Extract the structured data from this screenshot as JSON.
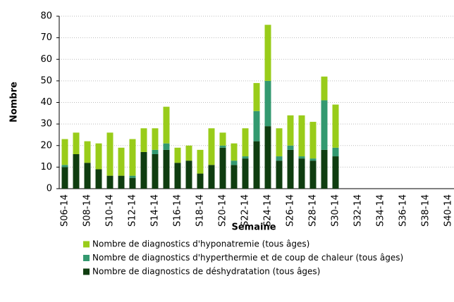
{
  "chart_data": {
    "type": "stacked_bar",
    "y_label": "Nombre",
    "x_label": "Semaine",
    "categories": [
      "S06-14",
      null,
      "S08-14",
      null,
      "S10-14",
      null,
      "S12-14",
      null,
      "S14-14",
      null,
      "S16-14",
      null,
      "S18-14",
      null,
      "S20-14",
      null,
      "S22-14",
      null,
      "S24-14",
      null,
      "S26-14",
      null,
      "S28-14",
      null,
      "S30-14",
      null,
      "S32-14",
      null,
      "S34-14",
      null,
      "S36-14",
      null,
      "S38-14",
      null,
      "S40-14"
    ],
    "series": [
      {
        "name": "Nombre de diagnostics d'hyponatremie (tous âges)",
        "color": "#99cc1a",
        "values": [
          12,
          10,
          10,
          12,
          20,
          13,
          17,
          11,
          10,
          17,
          7,
          7,
          11,
          17,
          6,
          8,
          13,
          13,
          26,
          13,
          14,
          19,
          17,
          11,
          20,
          null,
          null,
          null,
          null,
          null,
          null,
          null,
          null,
          null,
          null
        ]
      },
      {
        "name": "Nombre de diagnostics d'hyperthermie et de coup de chaleur (tous âges)",
        "color": "#339970",
        "values": [
          1,
          0,
          0,
          0,
          0,
          0,
          1,
          0,
          2,
          3,
          0,
          0,
          0,
          0,
          1,
          2,
          1,
          14,
          21,
          2,
          2,
          1,
          1,
          23,
          4,
          null,
          null,
          null,
          null,
          null,
          null,
          null,
          null,
          null,
          null
        ]
      },
      {
        "name": "Nombre de diagnostics de déshydratation (tous âges)",
        "color": "#0f3d10",
        "values": [
          10,
          16,
          12,
          9,
          6,
          6,
          5,
          17,
          16,
          18,
          12,
          13,
          7,
          11,
          19,
          11,
          14,
          22,
          29,
          13,
          18,
          14,
          13,
          18,
          15,
          null,
          null,
          null,
          null,
          null,
          null,
          null,
          null,
          null,
          null
        ]
      }
    ],
    "ylim": [
      0,
      80
    ],
    "yticks": [
      0,
      10,
      20,
      30,
      40,
      50,
      60,
      70,
      80
    ],
    "grid": true
  }
}
